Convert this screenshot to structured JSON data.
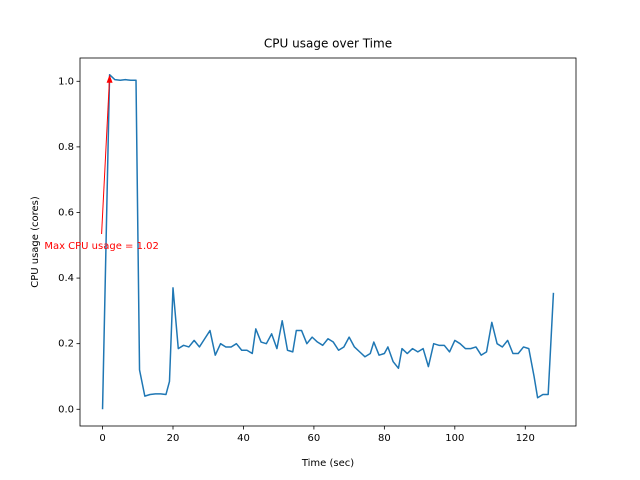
{
  "chart_data": {
    "type": "line",
    "title": "CPU usage over Time",
    "xlabel": "Time (sec)",
    "ylabel": "CPU usage (cores)",
    "color": "#1f77b4",
    "x": [
      0,
      2,
      3.5,
      5,
      6.5,
      8,
      9.5,
      10.5,
      12,
      13.5,
      15,
      16.5,
      18,
      19,
      20,
      21.5,
      23,
      24.5,
      26,
      27.5,
      29,
      30.5,
      32,
      33.5,
      35,
      36.5,
      38,
      39.5,
      41,
      42.5,
      43.5,
      45,
      46.5,
      48,
      49.5,
      51,
      52.5,
      54,
      55,
      56.5,
      58,
      59.5,
      61,
      62.5,
      64,
      65.5,
      67,
      68.5,
      70,
      71.5,
      73,
      74.5,
      76,
      77,
      78.5,
      80,
      81,
      82.5,
      84,
      85,
      86.5,
      88,
      89.5,
      91,
      92.5,
      94,
      95.5,
      97,
      98.5,
      100,
      101.5,
      103,
      104.5,
      106,
      107.5,
      109,
      110.5,
      112,
      113.5,
      115,
      116.5,
      118,
      119.5,
      121,
      122.5,
      123.5,
      125,
      126.5,
      128
    ],
    "values": [
      0,
      1.02,
      1.005,
      1.003,
      1.005,
      1.003,
      1.003,
      0.12,
      0.04,
      0.045,
      0.047,
      0.047,
      0.045,
      0.085,
      0.37,
      0.185,
      0.195,
      0.19,
      0.21,
      0.19,
      0.215,
      0.24,
      0.165,
      0.2,
      0.19,
      0.19,
      0.2,
      0.18,
      0.18,
      0.17,
      0.245,
      0.205,
      0.2,
      0.23,
      0.185,
      0.27,
      0.18,
      0.175,
      0.24,
      0.24,
      0.2,
      0.22,
      0.205,
      0.195,
      0.215,
      0.205,
      0.18,
      0.19,
      0.22,
      0.19,
      0.175,
      0.16,
      0.17,
      0.205,
      0.165,
      0.17,
      0.19,
      0.145,
      0.125,
      0.185,
      0.17,
      0.185,
      0.175,
      0.185,
      0.13,
      0.2,
      0.195,
      0.195,
      0.175,
      0.21,
      0.2,
      0.185,
      0.185,
      0.19,
      0.165,
      0.175,
      0.265,
      0.2,
      0.19,
      0.21,
      0.17,
      0.17,
      0.19,
      0.185,
      0.1,
      0.035,
      0.045,
      0.045,
      0.355
    ],
    "xlim": [
      -6.4,
      134.4
    ],
    "ylim": [
      -0.051,
      1.071
    ],
    "xticks": [
      0,
      20,
      40,
      60,
      80,
      100,
      120
    ],
    "yticks": [
      {
        "value": 0,
        "label": "0.0"
      },
      0.2,
      0.4,
      0.6,
      0.8,
      {
        "value": 1,
        "label": "1.0"
      }
    ],
    "annotation": {
      "text": "Max CPU usage = 1.02",
      "x": 2,
      "y": 1.02,
      "color": "#ff0000"
    }
  }
}
